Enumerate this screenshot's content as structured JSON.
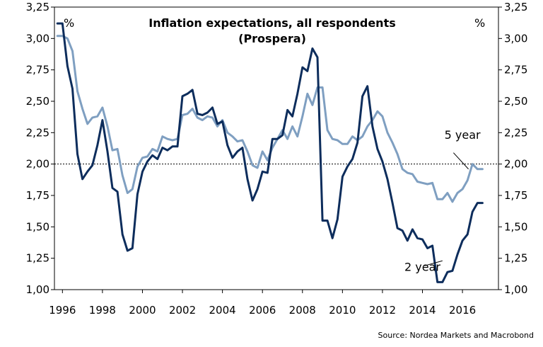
{
  "chart_data": {
    "type": "line",
    "title_line1": "Inflation expectations, all respondents",
    "title_line2": "(Prospera)",
    "unit_left": "%",
    "unit_right": "%",
    "source": "Source: Nordea Markets and Macrobond",
    "xlim": [
      1995.6,
      2017.8
    ],
    "ylim": [
      1.0,
      3.25
    ],
    "x_ticks": [
      1996,
      1998,
      2000,
      2002,
      2004,
      2006,
      2008,
      2010,
      2012,
      2014,
      2016
    ],
    "x_tick_labels": [
      "1996",
      "1998",
      "2000",
      "2002",
      "2004",
      "2006",
      "2008",
      "2010",
      "2012",
      "2014",
      "2016"
    ],
    "y_ticks": [
      1.0,
      1.25,
      1.5,
      1.75,
      2.0,
      2.25,
      2.5,
      2.75,
      3.0,
      3.25
    ],
    "y_tick_labels": [
      "1,00",
      "1,25",
      "1,50",
      "1,75",
      "2,00",
      "2,25",
      "2,50",
      "2,75",
      "3,00",
      "3,25"
    ],
    "reference_line": {
      "y": 2.0,
      "style": "dotted"
    },
    "annotations": [
      {
        "text": "5 year",
        "series": "5 year",
        "x": 2015.1,
        "y": 2.2,
        "target_x": 2016.3,
        "target_y": 1.96
      },
      {
        "text": "2 year",
        "series": "2 year",
        "x": 2013.1,
        "y": 1.15,
        "target_x": 2014.6,
        "target_y": 1.22
      }
    ],
    "series": [
      {
        "name": "2 year",
        "color": "#0d2d5c",
        "x": [
          1995.75,
          1996.0,
          1996.25,
          1996.5,
          1996.75,
          1997.0,
          1997.25,
          1997.5,
          1997.75,
          1998.0,
          1998.25,
          1998.5,
          1998.75,
          1999.0,
          1999.25,
          1999.5,
          1999.75,
          2000.0,
          2000.25,
          2000.5,
          2000.75,
          2001.0,
          2001.25,
          2001.5,
          2001.75,
          2002.0,
          2002.25,
          2002.5,
          2002.75,
          2003.0,
          2003.25,
          2003.5,
          2003.75,
          2004.0,
          2004.25,
          2004.5,
          2004.75,
          2005.0,
          2005.25,
          2005.5,
          2005.75,
          2006.0,
          2006.25,
          2006.5,
          2006.75,
          2007.0,
          2007.25,
          2007.5,
          2007.75,
          2008.0,
          2008.25,
          2008.5,
          2008.75,
          2009.0,
          2009.25,
          2009.5,
          2009.75,
          2010.0,
          2010.25,
          2010.5,
          2010.75,
          2011.0,
          2011.25,
          2011.5,
          2011.75,
          2012.0,
          2012.25,
          2012.5,
          2012.75,
          2013.0,
          2013.25,
          2013.5,
          2013.75,
          2014.0,
          2014.25,
          2014.5,
          2014.75,
          2015.0,
          2015.25,
          2015.5,
          2015.75,
          2016.0,
          2016.25,
          2016.5,
          2016.75,
          2017.0
        ],
        "values": [
          3.12,
          3.12,
          2.78,
          2.6,
          2.08,
          1.88,
          1.94,
          1.99,
          2.15,
          2.35,
          2.1,
          1.81,
          1.78,
          1.44,
          1.31,
          1.33,
          1.76,
          1.94,
          2.02,
          2.07,
          2.04,
          2.13,
          2.11,
          2.14,
          2.14,
          2.54,
          2.56,
          2.59,
          2.4,
          2.39,
          2.41,
          2.45,
          2.32,
          2.34,
          2.15,
          2.05,
          2.1,
          2.13,
          1.88,
          1.71,
          1.8,
          1.94,
          1.93,
          2.2,
          2.2,
          2.23,
          2.43,
          2.38,
          2.56,
          2.77,
          2.74,
          2.92,
          2.85,
          1.55,
          1.55,
          1.41,
          1.56,
          1.9,
          1.98,
          2.04,
          2.17,
          2.54,
          2.62,
          2.3,
          2.12,
          2.02,
          1.88,
          1.69,
          1.49,
          1.47,
          1.39,
          1.48,
          1.41,
          1.4,
          1.33,
          1.35,
          1.06,
          1.06,
          1.14,
          1.15,
          1.28,
          1.39,
          1.44,
          1.62,
          1.69,
          1.69
        ]
      },
      {
        "name": "5 year",
        "color": "#7f9fc1",
        "x": [
          1995.75,
          1996.0,
          1996.25,
          1996.5,
          1996.75,
          1997.0,
          1997.25,
          1997.5,
          1997.75,
          1998.0,
          1998.25,
          1998.5,
          1998.75,
          1999.0,
          1999.25,
          1999.5,
          1999.75,
          2000.0,
          2000.25,
          2000.5,
          2000.75,
          2001.0,
          2001.25,
          2001.5,
          2001.75,
          2002.0,
          2002.25,
          2002.5,
          2002.75,
          2003.0,
          2003.25,
          2003.5,
          2003.75,
          2004.0,
          2004.25,
          2004.5,
          2004.75,
          2005.0,
          2005.25,
          2005.5,
          2005.75,
          2006.0,
          2006.25,
          2006.5,
          2006.75,
          2007.0,
          2007.25,
          2007.5,
          2007.75,
          2008.0,
          2008.25,
          2008.5,
          2008.75,
          2009.0,
          2009.25,
          2009.5,
          2009.75,
          2010.0,
          2010.25,
          2010.5,
          2010.75,
          2011.0,
          2011.25,
          2011.5,
          2011.75,
          2012.0,
          2012.25,
          2012.5,
          2012.75,
          2013.0,
          2013.25,
          2013.5,
          2013.75,
          2014.0,
          2014.25,
          2014.5,
          2014.75,
          2015.0,
          2015.25,
          2015.5,
          2015.75,
          2016.0,
          2016.25,
          2016.5,
          2016.75,
          2017.0
        ],
        "values": [
          3.02,
          3.02,
          3.0,
          2.9,
          2.58,
          2.44,
          2.32,
          2.37,
          2.38,
          2.45,
          2.3,
          2.11,
          2.12,
          1.91,
          1.77,
          1.8,
          1.98,
          2.05,
          2.06,
          2.12,
          2.1,
          2.22,
          2.2,
          2.19,
          2.2,
          2.39,
          2.4,
          2.44,
          2.37,
          2.35,
          2.38,
          2.37,
          2.3,
          2.35,
          2.25,
          2.22,
          2.18,
          2.19,
          2.1,
          1.99,
          1.97,
          2.1,
          2.03,
          2.13,
          2.2,
          2.27,
          2.2,
          2.3,
          2.22,
          2.38,
          2.56,
          2.47,
          2.61,
          2.61,
          2.27,
          2.2,
          2.19,
          2.16,
          2.16,
          2.22,
          2.19,
          2.22,
          2.3,
          2.35,
          2.42,
          2.38,
          2.25,
          2.17,
          2.08,
          1.96,
          1.93,
          1.92,
          1.86,
          1.85,
          1.84,
          1.85,
          1.72,
          1.72,
          1.77,
          1.7,
          1.77,
          1.8,
          1.87,
          2.0,
          1.96,
          1.96
        ]
      }
    ]
  }
}
